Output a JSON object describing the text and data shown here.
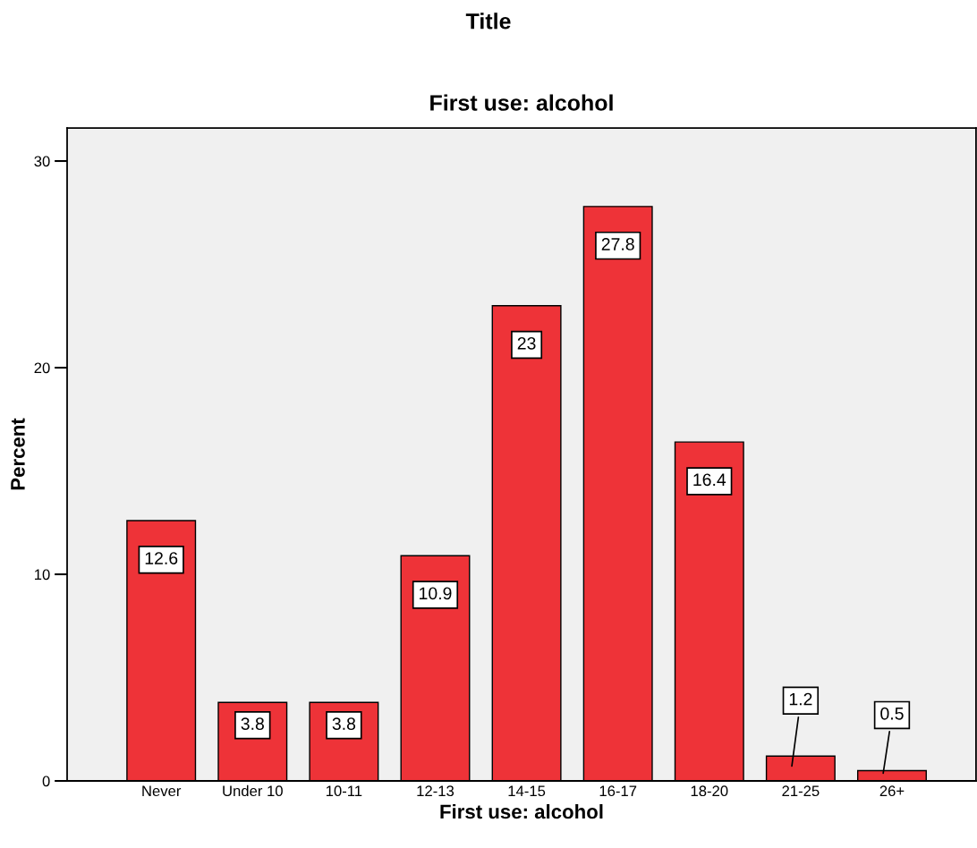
{
  "chart_data": {
    "type": "bar",
    "title": "Title",
    "subtitle": "First use: alcohol",
    "xlabel": "First use: alcohol",
    "ylabel": "Percent",
    "categories": [
      "Never",
      "Under 10",
      "10-11",
      "12-13",
      "14-15",
      "16-17",
      "18-20",
      "21-25",
      "26+"
    ],
    "values": [
      12.6,
      3.8,
      3.8,
      10.9,
      23,
      27.8,
      16.4,
      1.2,
      0.5
    ],
    "color": "#ee3338",
    "ylim": [
      0,
      31.6
    ],
    "yticks": [
      0,
      10,
      20,
      30
    ],
    "grid": false,
    "data_labels": true
  }
}
